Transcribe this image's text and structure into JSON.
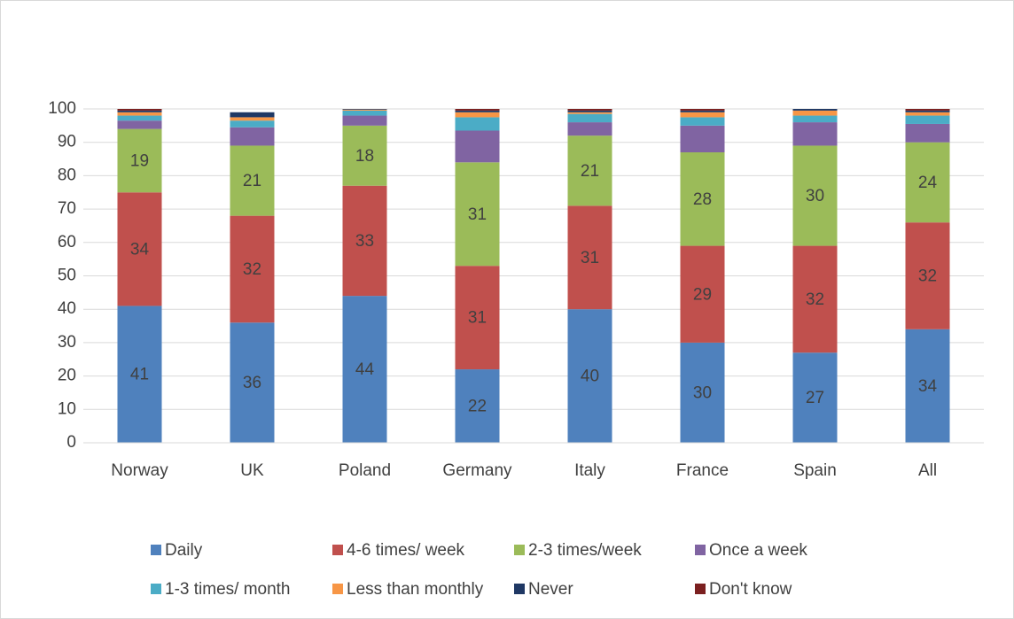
{
  "chart_data": {
    "type": "stacked_bar",
    "categories": [
      "Norway",
      "UK",
      "Poland",
      "Germany",
      "Italy",
      "France",
      "Spain",
      "All"
    ],
    "series": [
      {
        "name": "Daily",
        "color": "#4f81bd",
        "data_labels": true,
        "values": [
          41,
          36,
          44,
          22,
          40,
          30,
          27,
          34
        ]
      },
      {
        "name": "4-6 times/ week",
        "color": "#c0504d",
        "data_labels": true,
        "values": [
          34,
          32,
          33,
          31,
          31,
          29,
          32,
          32
        ]
      },
      {
        "name": "2-3 times/week",
        "color": "#9bbb59",
        "data_labels": true,
        "values": [
          19,
          21,
          18,
          31,
          21,
          28,
          30,
          24
        ]
      },
      {
        "name": "Once a week",
        "color": "#8064a2",
        "data_labels": false,
        "values": [
          2.5,
          5.5,
          3,
          9.5,
          4,
          8,
          7,
          5.5
        ]
      },
      {
        "name": "1-3 times/ month",
        "color": "#4bacc6",
        "data_labels": false,
        "values": [
          1.5,
          2,
          1.5,
          4,
          2.5,
          2.5,
          2,
          2.5
        ]
      },
      {
        "name": "Less than monthly",
        "color": "#f79646",
        "data_labels": false,
        "values": [
          1,
          1,
          0.3,
          1.5,
          0.5,
          1.5,
          1.5,
          1
        ]
      },
      {
        "name": "Never",
        "color": "#1f3864",
        "data_labels": false,
        "values": [
          0.5,
          1.5,
          0.2,
          0.5,
          0.5,
          0.5,
          0.5,
          0.5
        ]
      },
      {
        "name": "Don't know",
        "color": "#7b2020",
        "data_labels": false,
        "values": [
          0.5,
          0,
          0,
          0.5,
          0.5,
          0.5,
          0,
          0.5
        ]
      }
    ],
    "ylim": [
      0,
      100
    ],
    "yticks": [
      0,
      10,
      20,
      30,
      40,
      50,
      60,
      70,
      80,
      90,
      100
    ],
    "grid": true,
    "legend": "bottom"
  }
}
